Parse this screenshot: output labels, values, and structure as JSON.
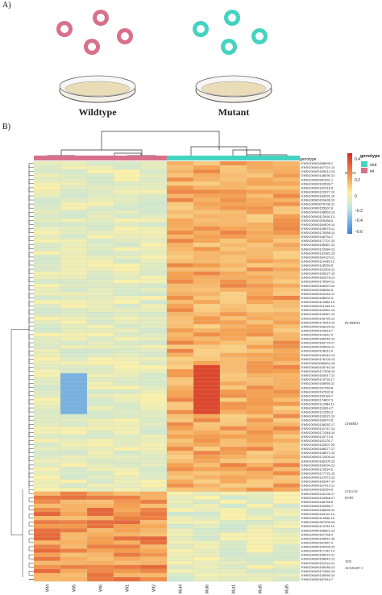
{
  "panel_a": {
    "label": "A)",
    "groups": [
      {
        "caption": "Wildtype",
        "color": "#d9708a"
      },
      {
        "caption": "Mutant",
        "color": "#44d3c0"
      }
    ]
  },
  "panel_b": {
    "label": "B)",
    "annotation_label": "genotype",
    "legend": {
      "title": "genotype",
      "items": [
        {
          "label": "mut",
          "color": "#44d3c0"
        },
        {
          "label": "wt",
          "color": "#d9708a"
        }
      ],
      "scale_ticks": [
        "0.4",
        "0.2",
        "0",
        "−0.2",
        "−0.4",
        "−0.6"
      ]
    },
    "samples": [
      "Wt4",
      "Wt5",
      "Wt6",
      "Wt1",
      "Wt2",
      "Mut4",
      "Mut6",
      "Mut1",
      "Mut5",
      "Mut5"
    ],
    "callouts": [
      "IRF805",
      "PCDH910",
      "LYSMD3",
      "COL1A1",
      "EVPL",
      "TTN",
      "AC010207.1"
    ],
    "gene_ids": [
      "ENSG00000268905.1",
      "ENSG00000167721.13",
      "ENSG00000165013.10",
      "ENSG00000148290.13",
      "ENSG00000261431.1",
      "ENSG00000103599.7",
      "ENSG00000181016.5",
      "ENSG00000122877.10",
      "ENSG00000183091.16",
      "ENSG00000109436.10",
      "ENSG00000076706.11",
      "ENSG00000155307.8",
      "ENSG00000198563.13",
      "ENSG00000113916.13",
      "ENSG00000205358.4",
      "ENSG00000184009.14",
      "ENSG00000135678.11",
      "ENSG00000170558.13",
      "ENSG00000148734.7",
      "ENSG00000177707.10",
      "ENSG00000196367.12",
      "ENSG00000123384.13",
      "ENSG00000131981.15",
      "ENSG00000164124.11",
      "ENSG00000110436.12",
      "ENSG00000128059.5",
      "ENSG00000151503.12",
      "ENSG00000105327.15",
      "ENSG00000182578.13",
      "ENSG00000175084.11",
      "ENSG00000166923.10",
      "ENSG00000158050.5",
      "ENSG00000204152.11",
      "ENSG00000185002.9",
      "ENSG00000113966.10",
      "ENSG00000211448.10",
      "ENSG00000132561.13",
      "ENSG00000143367.15",
      "ENSG00000106799.12",
      "ENSG00000179044.15",
      "ENSG00000166226.12",
      "ENSG00000143816.7",
      "ENSG00000119922.9",
      "ENSG00000186340.14",
      "ENSG00000183778.17",
      "ENSG00000155903.11",
      "ENSG00000128011.8",
      "ENSG00000140443.13",
      "ENSG00000176105.13",
      "ENSG00000080824.18",
      "ENSG00000135740.15",
      "ENSG00000177508.10",
      "ENSG00000163017.12",
      "ENSG00000115718.17",
      "ENSG00000108950.11",
      "ENSG00000167355.8",
      "ENSG00000197632.8",
      "ENSG00000159184.7",
      "ENSG00000174807.3",
      "ENSG00000112984.11",
      "ENSG00000163814.7",
      "ENSG00000121552.3",
      "ENSG00000109321.10",
      "ENSG00000165474.5",
      "ENSG00000136352.17",
      "ENSG00000131747.14",
      "ENSG00000171346.14",
      "ENSG00000143772.9",
      "ENSG00000151176.7",
      "ENSG00000122507.20",
      "ENSG00000168477.17",
      "ENSG00000148671.13",
      "ENSG00000172005.10",
      "ENSG00000166105.15",
      "ENSG00000164294.13",
      "ENSG00000119514.6",
      "ENSG00000177731.15",
      "ENSG00000137573.13",
      "ENSG00000183347.14",
      "ENSG00000167419.11",
      "ENSG00000182054.9",
      "ENSG00000140105.17",
      "ENSG00000104368.17",
      "ENSG00000138755.5",
      "ENSG00000100985.7",
      "ENSG00000196839.12",
      "ENSG00000163110.14",
      "ENSG00000119946.10",
      "ENSG00000187908.15",
      "ENSG00000113739.10",
      "ENSG00000108821.13",
      "ENSG00000167768.4",
      "ENSG00000155657.25",
      "ENSG00000187867.4",
      "ENSG00000150995.19",
      "ENSG00000117152.13",
      "ENSG00000105974.11",
      "ENSG00000168542.13",
      "ENSG00000151224.11",
      "ENSG00000158186.13",
      "ENSG00000171560.15",
      "ENSG00000139055.10",
      "ENSG00000187944.7"
    ]
  }
}
